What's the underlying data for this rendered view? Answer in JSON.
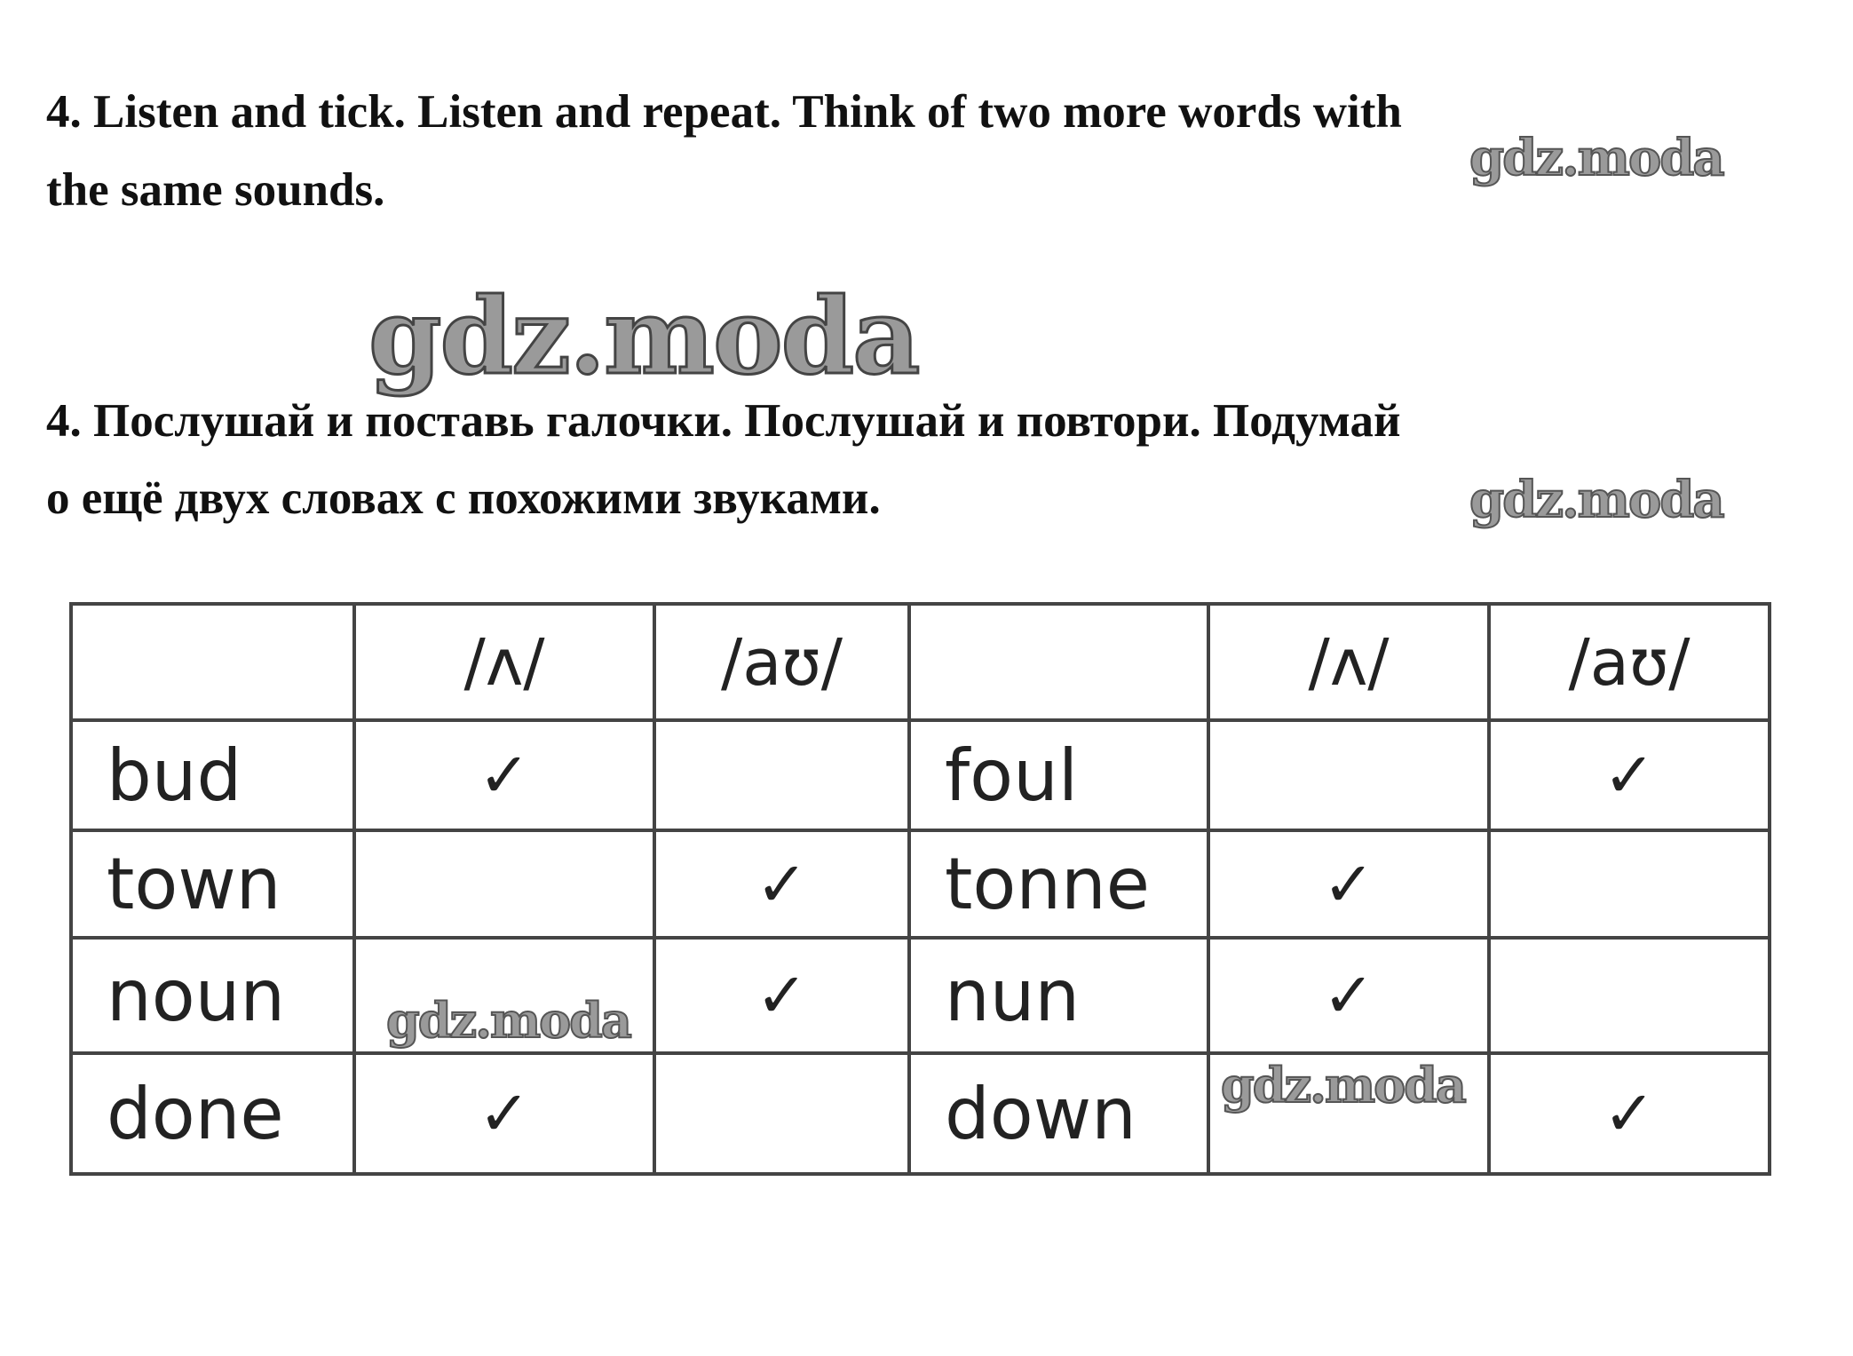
{
  "english": {
    "line1": "4. Listen and tick. Listen and repeat. Think of two more words with",
    "line2": "the same sounds."
  },
  "russian": {
    "line1": "4. Послушай и поставь галочки. Послушай и повтори. Подумай",
    "line2": "о ещё двух словах с похожими звуками."
  },
  "watermark": "gdz.moda",
  "table": {
    "headers": [
      "",
      "/ʌ/",
      "/aʊ/",
      "",
      "/ʌ/",
      "/aʊ/"
    ],
    "tick": "✓",
    "rows": [
      {
        "word1": "bud",
        "a1": true,
        "b1": false,
        "word2": "foul",
        "a2": false,
        "b2": true
      },
      {
        "word1": "town",
        "a1": false,
        "b1": true,
        "word2": "tonne",
        "a2": true,
        "b2": false
      },
      {
        "word1": "noun",
        "a1": false,
        "b1": true,
        "word2": "nun",
        "a2": true,
        "b2": false
      },
      {
        "word1": "done",
        "a1": true,
        "b1": false,
        "word2": "down",
        "a2": false,
        "b2": true
      }
    ]
  }
}
